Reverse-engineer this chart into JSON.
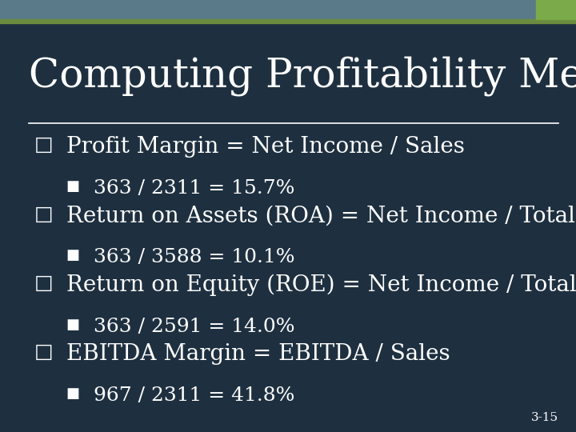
{
  "title": "Computing Profitability Measures",
  "background_color": "#1e3040",
  "text_color": "#ffffff",
  "title_fontsize": 36,
  "bullet_fontsize": 20,
  "sub_bullet_fontsize": 18,
  "slide_number": "3-15",
  "header_bar_color": "#5a7a8a",
  "header_green_color": "#6b8c3e",
  "header_accent_color": "#7aaa4a",
  "bullets": [
    {
      "text": "Profit Margin = Net Income / Sales",
      "sub": "363 / 2311 = 15.7%"
    },
    {
      "text": "Return on Assets (ROA) = Net Income / Total Assets",
      "sub": "363 / 3588 = 10.1%"
    },
    {
      "text": "Return on Equity (ROE) = Net Income / Total Equity",
      "sub": "363 / 2591 = 14.0%"
    },
    {
      "text": "EBITDA Margin = EBITDA / Sales",
      "sub": "967 / 2311 = 41.8%"
    }
  ]
}
